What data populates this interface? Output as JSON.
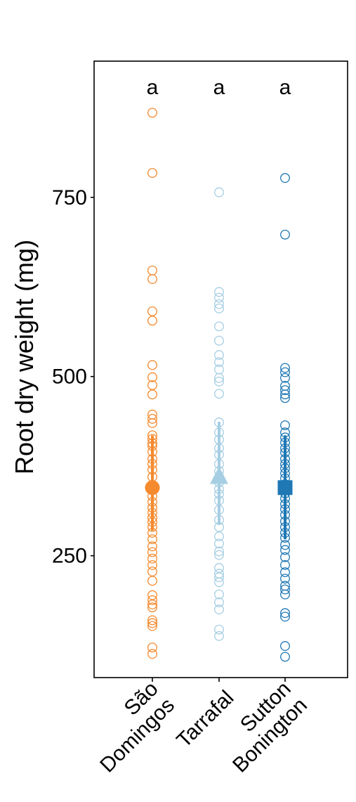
{
  "chart_data": {
    "type": "scatter",
    "ylabel": "Root dry weight (mg)",
    "xlabel": "",
    "ylim": [
      80,
      940
    ],
    "yticks": [
      250,
      500,
      750
    ],
    "categories": [
      {
        "line1": "São",
        "line2": "Domingos"
      },
      {
        "line1": "Tarrafal",
        "line2": ""
      },
      {
        "line1": "Sutton",
        "line2": "Bonington"
      }
    ],
    "significance_letters": [
      "a",
      "a",
      "a"
    ],
    "series": [
      {
        "color": "#f58a2e",
        "marker": "circle",
        "mean": 345,
        "err_low": 285,
        "err_high": 418,
        "points": [
          868,
          784,
          648,
          636,
          591,
          578,
          516,
          499,
          488,
          475,
          447,
          441,
          435,
          418,
          413,
          407,
          403,
          395,
          385,
          378,
          370,
          360,
          343,
          333,
          325,
          317,
          310,
          303,
          297,
          290,
          282,
          273,
          263,
          255,
          246,
          237,
          228,
          215,
          195,
          188,
          182,
          178,
          160,
          156,
          152,
          122,
          113
        ]
      },
      {
        "color": "#a6cee3",
        "marker": "triangle",
        "mean": 360,
        "err_low": 293,
        "err_high": 437,
        "points": [
          757,
          618,
          610,
          601,
          595,
          570,
          550,
          530,
          520,
          510,
          498,
          493,
          476,
          436,
          422,
          412,
          400,
          391,
          378,
          368,
          360,
          352,
          343,
          336,
          327,
          314,
          300,
          290,
          277,
          267,
          256,
          251,
          233,
          225,
          220,
          213,
          196,
          185,
          175,
          147,
          138
        ]
      },
      {
        "color": "#1f78b4",
        "marker": "square",
        "mean": 345,
        "err_low": 273,
        "err_high": 418,
        "points": [
          777,
          698,
          512,
          506,
          498,
          487,
          481,
          475,
          470,
          432,
          422,
          415,
          408,
          400,
          394,
          385,
          378,
          372,
          365,
          358,
          350,
          343,
          337,
          330,
          322,
          315,
          307,
          298,
          290,
          282,
          275,
          265,
          258,
          248,
          237,
          227,
          218,
          208,
          203,
          196,
          170,
          165,
          124,
          109
        ]
      }
    ]
  }
}
